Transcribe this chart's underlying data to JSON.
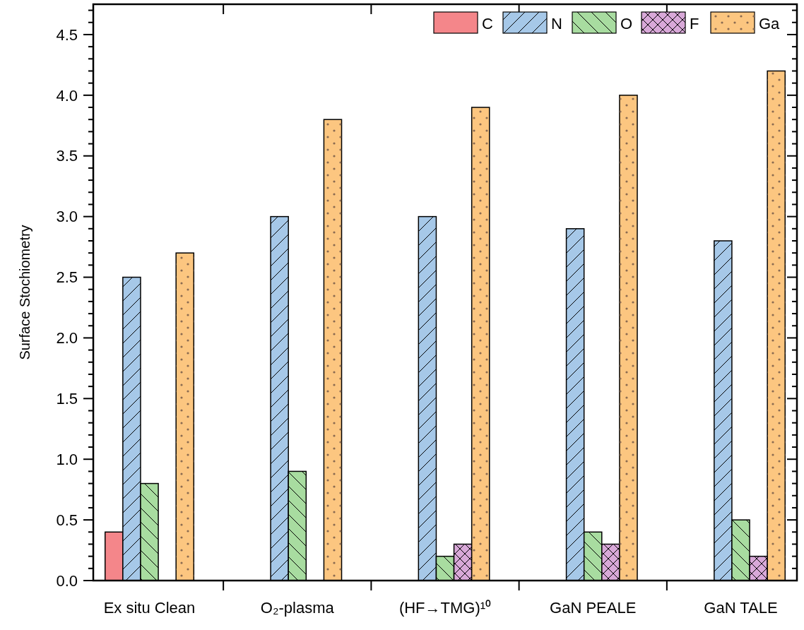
{
  "chart_data": {
    "type": "bar",
    "ylabel": "Surface Stochiometry",
    "categories": [
      "Ex situ Clean",
      "O₂-plasma",
      "(HF→TMG)¹⁰",
      "GaN PEALE",
      "GaN TALE"
    ],
    "series": [
      {
        "name": "C",
        "color": "#f4868a",
        "values": [
          0.4,
          null,
          null,
          null,
          null
        ]
      },
      {
        "name": "N",
        "color": "#a6c8e8",
        "values": [
          2.5,
          3.0,
          3.0,
          2.9,
          2.8
        ]
      },
      {
        "name": "O",
        "color": "#a8dca0",
        "values": [
          0.8,
          0.9,
          0.2,
          0.4,
          0.5
        ]
      },
      {
        "name": "F",
        "color": "#d8a8d8",
        "values": [
          null,
          null,
          0.3,
          0.3,
          0.2
        ]
      },
      {
        "name": "Ga",
        "color": "#fcc680",
        "values": [
          2.7,
          3.8,
          3.9,
          4.0,
          4.2
        ]
      }
    ],
    "ylim": [
      0,
      4.75
    ],
    "yticks": [
      {
        "value": 0,
        "label": "0.0"
      },
      {
        "value": 0.1,
        "label": null
      },
      {
        "value": 0.2,
        "label": null
      },
      {
        "value": 0.3,
        "label": null
      },
      {
        "value": 0.4,
        "label": null
      },
      {
        "value": 0.5,
        "label": "0.5"
      },
      {
        "value": 0.6,
        "label": null
      },
      {
        "value": 0.7,
        "label": null
      },
      {
        "value": 0.8,
        "label": null
      },
      {
        "value": 0.9,
        "label": null
      },
      {
        "value": 1.0,
        "label": "1.0"
      },
      {
        "value": 1.1,
        "label": null
      },
      {
        "value": 1.2,
        "label": null
      },
      {
        "value": 1.3,
        "label": null
      },
      {
        "value": 1.4,
        "label": null
      },
      {
        "value": 1.5,
        "label": "1.5"
      },
      {
        "value": 1.6,
        "label": null
      },
      {
        "value": 1.7,
        "label": null
      },
      {
        "value": 1.8,
        "label": null
      },
      {
        "value": 1.9,
        "label": null
      },
      {
        "value": 2.0,
        "label": "2.0"
      },
      {
        "value": 2.1,
        "label": null
      },
      {
        "value": 2.2,
        "label": null
      },
      {
        "value": 2.3,
        "label": null
      },
      {
        "value": 2.4,
        "label": null
      },
      {
        "value": 2.5,
        "label": "2.5"
      },
      {
        "value": 2.6,
        "label": null
      },
      {
        "value": 2.7,
        "label": null
      },
      {
        "value": 2.8,
        "label": null
      },
      {
        "value": 2.9,
        "label": null
      },
      {
        "value": 3.0,
        "label": "3.0"
      },
      {
        "value": 3.1,
        "label": null
      },
      {
        "value": 3.2,
        "label": null
      },
      {
        "value": 3.3,
        "label": null
      },
      {
        "value": 3.4,
        "label": null
      },
      {
        "value": 3.5,
        "label": "3.5"
      },
      {
        "value": 3.6,
        "label": null
      },
      {
        "value": 3.7,
        "label": null
      },
      {
        "value": 3.8,
        "label": null
      },
      {
        "value": 3.9,
        "label": null
      },
      {
        "value": 4.0,
        "label": "4.0"
      },
      {
        "value": 4.1,
        "label": null
      },
      {
        "value": 4.2,
        "label": null
      },
      {
        "value": 4.3,
        "label": null
      },
      {
        "value": 4.4,
        "label": null
      },
      {
        "value": 4.5,
        "label": "4.5"
      },
      {
        "value": 4.6,
        "label": null
      },
      {
        "value": 4.7,
        "label": null
      }
    ],
    "grid": false,
    "legend": "top right"
  }
}
